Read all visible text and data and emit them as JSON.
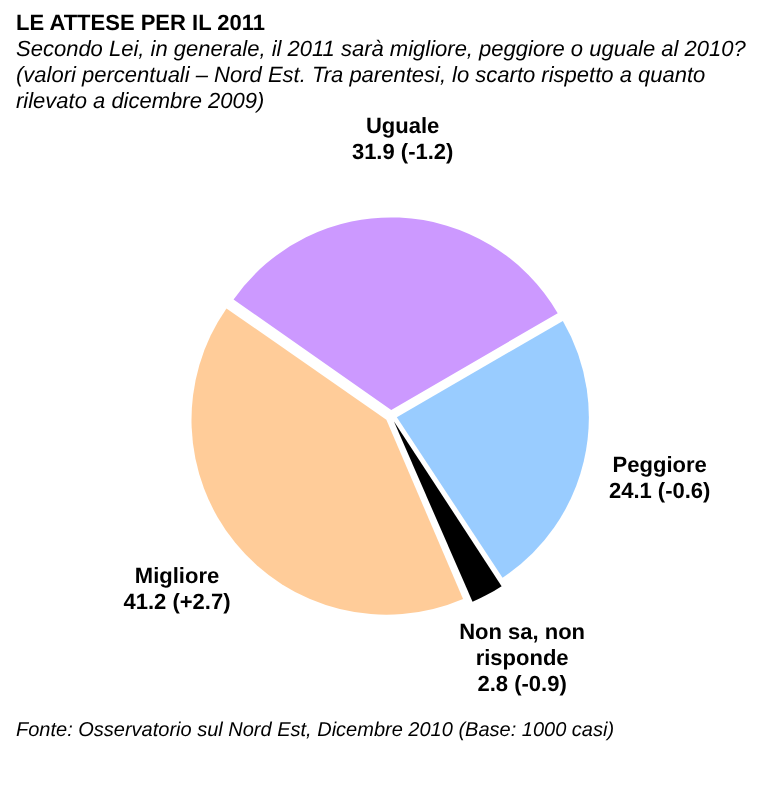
{
  "chart_data": {
    "type": "pie",
    "title": "LE ATTESE PER IL 2011",
    "subtitle": "Secondo Lei, in generale, il 2011 sarà migliore, peggiore o uguale al 2010? (valori percentuali – Nord Est. Tra parentesi, lo scarto rispetto a quanto rilevato a dicembre 2009)",
    "categories": [
      "Uguale",
      "Peggiore",
      "Non sa, non risponde",
      "Migliore"
    ],
    "values": [
      31.9,
      24.1,
      2.8,
      41.2
    ],
    "colors": [
      "#cc99ff",
      "#99ccff",
      "#000000",
      "#ffcc99"
    ],
    "value_labels": [
      "31.9 (-1.2)",
      "24.1 (-0.6)",
      "2.8 (-0.9)",
      "41.2 (+2.7)"
    ],
    "annotations": [
      "Fonte: Osservatorio sul Nord Est, Dicembre 2010 (Base: 1000 casi)"
    ],
    "legend": false
  }
}
